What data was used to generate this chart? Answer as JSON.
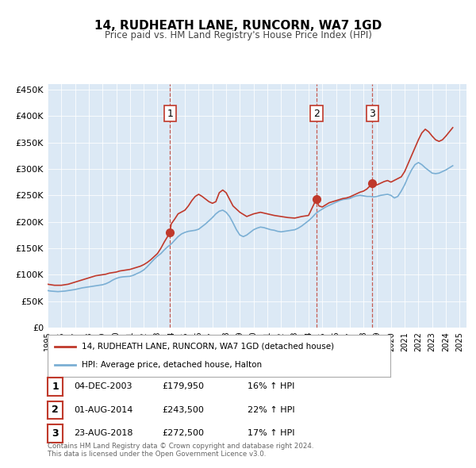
{
  "title": "14, RUDHEATH LANE, RUNCORN, WA7 1GD",
  "subtitle": "Price paid vs. HM Land Registry's House Price Index (HPI)",
  "bg_color": "#dce9f5",
  "plot_bg_color": "#dce9f5",
  "hpi_color": "#7bafd4",
  "price_color": "#c0392b",
  "ylabel_prefix": "£",
  "yticks": [
    0,
    50000,
    100000,
    150000,
    200000,
    250000,
    300000,
    350000,
    400000,
    450000
  ],
  "ytick_labels": [
    "£0",
    "£50K",
    "£100K",
    "£150K",
    "£200K",
    "£250K",
    "£300K",
    "£350K",
    "£400K",
    "£450K"
  ],
  "xmin": 1995.0,
  "xmax": 2025.5,
  "ymin": 0,
  "ymax": 460000,
  "sales": [
    {
      "date_num": 2003.92,
      "price": 179950,
      "label": "1"
    },
    {
      "date_num": 2014.58,
      "price": 243500,
      "label": "2"
    },
    {
      "date_num": 2018.65,
      "price": 272500,
      "label": "3"
    }
  ],
  "legend_label_red": "14, RUDHEATH LANE, RUNCORN, WA7 1GD (detached house)",
  "legend_label_blue": "HPI: Average price, detached house, Halton",
  "table_rows": [
    {
      "num": "1",
      "date": "04-DEC-2003",
      "price": "£179,950",
      "hpi": "16% ↑ HPI"
    },
    {
      "num": "2",
      "date": "01-AUG-2014",
      "price": "£243,500",
      "hpi": "22% ↑ HPI"
    },
    {
      "num": "3",
      "date": "23-AUG-2018",
      "price": "£272,500",
      "hpi": "17% ↑ HPI"
    }
  ],
  "footnote": "Contains HM Land Registry data © Crown copyright and database right 2024.\nThis data is licensed under the Open Government Licence v3.0.",
  "hpi_data": {
    "years": [
      1995.0,
      1995.25,
      1995.5,
      1995.75,
      1996.0,
      1996.25,
      1996.5,
      1996.75,
      1997.0,
      1997.25,
      1997.5,
      1997.75,
      1998.0,
      1998.25,
      1998.5,
      1998.75,
      1999.0,
      1999.25,
      1999.5,
      1999.75,
      2000.0,
      2000.25,
      2000.5,
      2000.75,
      2001.0,
      2001.25,
      2001.5,
      2001.75,
      2002.0,
      2002.25,
      2002.5,
      2002.75,
      2003.0,
      2003.25,
      2003.5,
      2003.75,
      2004.0,
      2004.25,
      2004.5,
      2004.75,
      2005.0,
      2005.25,
      2005.5,
      2005.75,
      2006.0,
      2006.25,
      2006.5,
      2006.75,
      2007.0,
      2007.25,
      2007.5,
      2007.75,
      2008.0,
      2008.25,
      2008.5,
      2008.75,
      2009.0,
      2009.25,
      2009.5,
      2009.75,
      2010.0,
      2010.25,
      2010.5,
      2010.75,
      2011.0,
      2011.25,
      2011.5,
      2011.75,
      2012.0,
      2012.25,
      2012.5,
      2012.75,
      2013.0,
      2013.25,
      2013.5,
      2013.75,
      2014.0,
      2014.25,
      2014.5,
      2014.75,
      2015.0,
      2015.25,
      2015.5,
      2015.75,
      2016.0,
      2016.25,
      2016.5,
      2016.75,
      2017.0,
      2017.25,
      2017.5,
      2017.75,
      2018.0,
      2018.25,
      2018.5,
      2018.75,
      2019.0,
      2019.25,
      2019.5,
      2019.75,
      2020.0,
      2020.25,
      2020.5,
      2020.75,
      2021.0,
      2021.25,
      2021.5,
      2021.75,
      2022.0,
      2022.25,
      2022.5,
      2022.75,
      2023.0,
      2023.25,
      2023.5,
      2023.75,
      2024.0,
      2024.25,
      2024.5
    ],
    "values": [
      70000,
      69000,
      68500,
      68000,
      68500,
      69000,
      70000,
      71000,
      72000,
      73500,
      75000,
      76000,
      77000,
      78000,
      79000,
      80000,
      81000,
      83000,
      86000,
      90000,
      93000,
      95000,
      96000,
      96500,
      97000,
      99000,
      102000,
      105000,
      109000,
      115000,
      122000,
      129000,
      135000,
      140000,
      147000,
      153000,
      158000,
      165000,
      172000,
      177000,
      180000,
      182000,
      183000,
      184000,
      186000,
      191000,
      196000,
      202000,
      208000,
      215000,
      220000,
      222000,
      218000,
      210000,
      198000,
      185000,
      175000,
      172000,
      175000,
      180000,
      185000,
      188000,
      190000,
      189000,
      187000,
      185000,
      184000,
      182000,
      181000,
      182000,
      183000,
      184000,
      185000,
      188000,
      192000,
      197000,
      202000,
      208000,
      215000,
      220000,
      224000,
      228000,
      231000,
      234000,
      237000,
      240000,
      242000,
      243000,
      244000,
      247000,
      249000,
      250000,
      249000,
      248000,
      248000,
      247000,
      248000,
      250000,
      251000,
      252000,
      250000,
      245000,
      248000,
      258000,
      270000,
      285000,
      298000,
      308000,
      312000,
      308000,
      302000,
      297000,
      292000,
      291000,
      292000,
      295000,
      298000,
      302000,
      306000
    ]
  },
  "price_data": {
    "years": [
      1995.0,
      1995.5,
      1996.0,
      1996.5,
      1997.0,
      1997.5,
      1997.75,
      1998.0,
      1998.25,
      1998.5,
      1999.0,
      1999.25,
      1999.5,
      1999.75,
      2000.0,
      2000.25,
      2000.5,
      2001.0,
      2001.25,
      2001.5,
      2001.75,
      2002.0,
      2002.25,
      2002.5,
      2002.75,
      2003.0,
      2003.25,
      2003.5,
      2003.92,
      2004.0,
      2004.25,
      2004.5,
      2005.0,
      2005.25,
      2005.5,
      2005.75,
      2006.0,
      2006.25,
      2006.5,
      2006.75,
      2007.0,
      2007.25,
      2007.5,
      2007.75,
      2008.0,
      2008.5,
      2009.0,
      2009.5,
      2010.0,
      2010.5,
      2011.0,
      2011.5,
      2012.0,
      2012.5,
      2013.0,
      2013.5,
      2014.0,
      2014.58,
      2014.75,
      2015.0,
      2015.25,
      2015.5,
      2015.75,
      2016.0,
      2016.25,
      2016.5,
      2016.75,
      2017.0,
      2017.25,
      2017.5,
      2017.75,
      2018.0,
      2018.25,
      2018.65,
      2018.75,
      2019.0,
      2019.25,
      2019.5,
      2019.75,
      2020.0,
      2020.75,
      2021.0,
      2021.25,
      2021.5,
      2021.75,
      2022.0,
      2022.25,
      2022.5,
      2022.75,
      2023.0,
      2023.25,
      2023.5,
      2023.75,
      2024.0,
      2024.25,
      2024.5
    ],
    "values": [
      82000,
      80000,
      80000,
      82000,
      86000,
      90000,
      92000,
      94000,
      96000,
      98000,
      100000,
      101000,
      103000,
      104000,
      105000,
      107000,
      108000,
      110000,
      112000,
      114000,
      116000,
      119000,
      123000,
      128000,
      134000,
      140000,
      150000,
      162000,
      179950,
      196000,
      205000,
      215000,
      222000,
      230000,
      240000,
      248000,
      252000,
      248000,
      243000,
      238000,
      235000,
      238000,
      255000,
      260000,
      255000,
      230000,
      218000,
      210000,
      215000,
      218000,
      215000,
      212000,
      210000,
      208000,
      207000,
      210000,
      212000,
      243500,
      230000,
      228000,
      232000,
      236000,
      238000,
      240000,
      242000,
      244000,
      245000,
      247000,
      250000,
      253000,
      256000,
      258000,
      262000,
      272500,
      268000,
      270000,
      273000,
      276000,
      278000,
      275000,
      285000,
      295000,
      310000,
      325000,
      340000,
      355000,
      368000,
      375000,
      370000,
      362000,
      355000,
      352000,
      355000,
      362000,
      370000,
      378000
    ]
  }
}
